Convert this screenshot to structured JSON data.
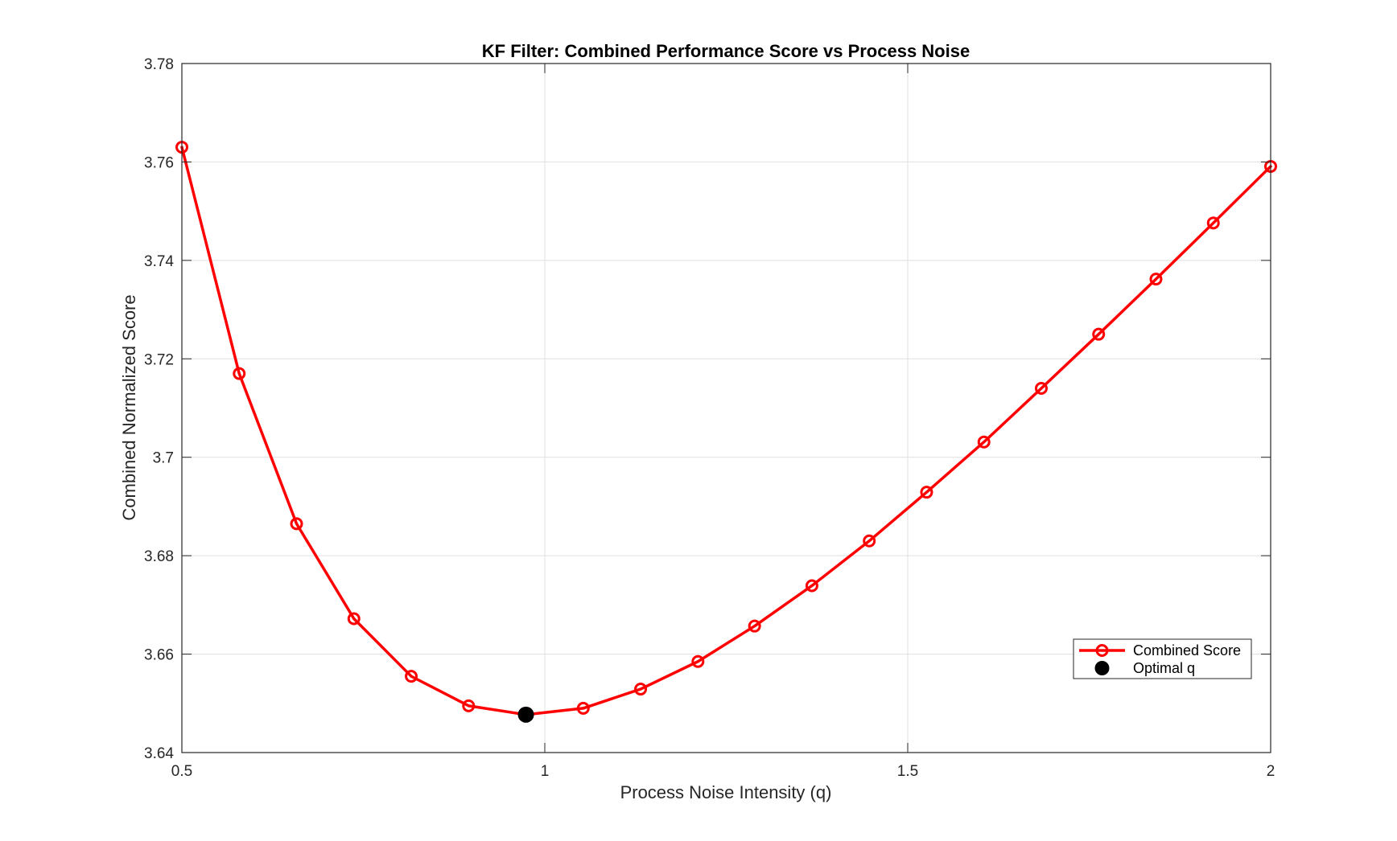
{
  "chart_data": {
    "type": "line",
    "title": "KF Filter: Combined Performance Score vs Process Noise",
    "xlabel": "Process Noise Intensity (q)",
    "ylabel": "Combined Normalized Score",
    "xlim": [
      0.5,
      2
    ],
    "ylim": [
      3.64,
      3.78
    ],
    "xticks": [
      0.5,
      1,
      1.5,
      2
    ],
    "xtick_labels": [
      "0.5",
      "1",
      "1.5",
      "2"
    ],
    "yticks": [
      3.64,
      3.66,
      3.68,
      3.7,
      3.72,
      3.74,
      3.76,
      3.78
    ],
    "ytick_labels": [
      "3.64",
      "3.66",
      "3.68",
      "3.7",
      "3.72",
      "3.74",
      "3.76",
      "3.78"
    ],
    "grid": true,
    "legend_position": "lower-right",
    "series": [
      {
        "name": "Combined Score",
        "color": "#ff0000",
        "marker": "open-circle",
        "x": [
          0.5,
          0.579,
          0.658,
          0.737,
          0.816,
          0.895,
          0.974,
          1.053,
          1.132,
          1.211,
          1.289,
          1.368,
          1.447,
          1.526,
          1.605,
          1.684,
          1.763,
          1.842,
          1.921,
          2.0
        ],
        "y": [
          3.763,
          3.717,
          3.6865,
          3.6672,
          3.6555,
          3.6495,
          3.6477,
          3.649,
          3.6529,
          3.6585,
          3.6657,
          3.6739,
          3.683,
          3.6929,
          3.7031,
          3.714,
          3.725,
          3.7362,
          3.7476,
          3.7591
        ]
      },
      {
        "name": "Optimal q",
        "color": "#000000",
        "marker": "filled-circle",
        "x": [
          0.974
        ],
        "y": [
          3.6477
        ]
      }
    ]
  }
}
